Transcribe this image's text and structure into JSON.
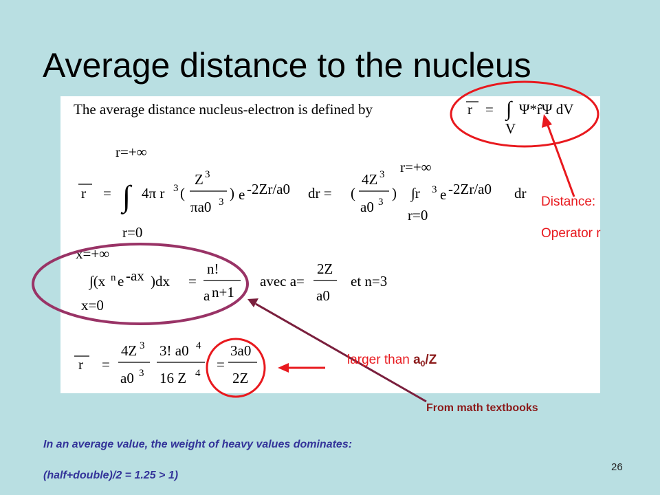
{
  "title": "Average distance to the nucleus",
  "math": {
    "eq1": [
      "The average distance nucleus-electron is defined by",
      "r",
      "=",
      "∫",
      "Ψ*r̂Ψ dV",
      "V"
    ],
    "eq2": [
      "r=+∞",
      "r",
      "=",
      "∫",
      "4π r",
      "3",
      "(",
      "Z",
      "3",
      "πa0",
      "3",
      ")",
      "e",
      "-2Zr/a0",
      "dr =",
      "(",
      "4Z",
      "3",
      "a0",
      "3",
      ")",
      "r=+∞",
      "∫r",
      "3",
      "e",
      "-2Zr/a0",
      "dr",
      "r=0",
      "r=0"
    ],
    "eq3": [
      "x=+∞",
      "∫(x",
      "n",
      "e",
      "-ax",
      ")dx",
      "=",
      "n!",
      "a",
      "n+1",
      "avec a=",
      "2Z",
      "a0",
      "et n=3",
      "x=0"
    ],
    "eq4": [
      "r",
      "=",
      "4Z",
      "3",
      "a0",
      "3",
      "3! a0",
      "4",
      "16 Z",
      "4",
      "=",
      "3a0",
      "2Z"
    ]
  },
  "annotations": {
    "distance": "Distance:",
    "operator": "Operator r",
    "larger_than": {
      "text": "larger than ",
      "a": "a",
      "sub": "0",
      "rest": "/Z"
    },
    "source": "From math textbooks"
  },
  "footer": {
    "line1": "In an average value, the weight of heavy values dominates:",
    "line2": "(half+double)/2 = 1.25 > 1)"
  },
  "page_number": "26"
}
